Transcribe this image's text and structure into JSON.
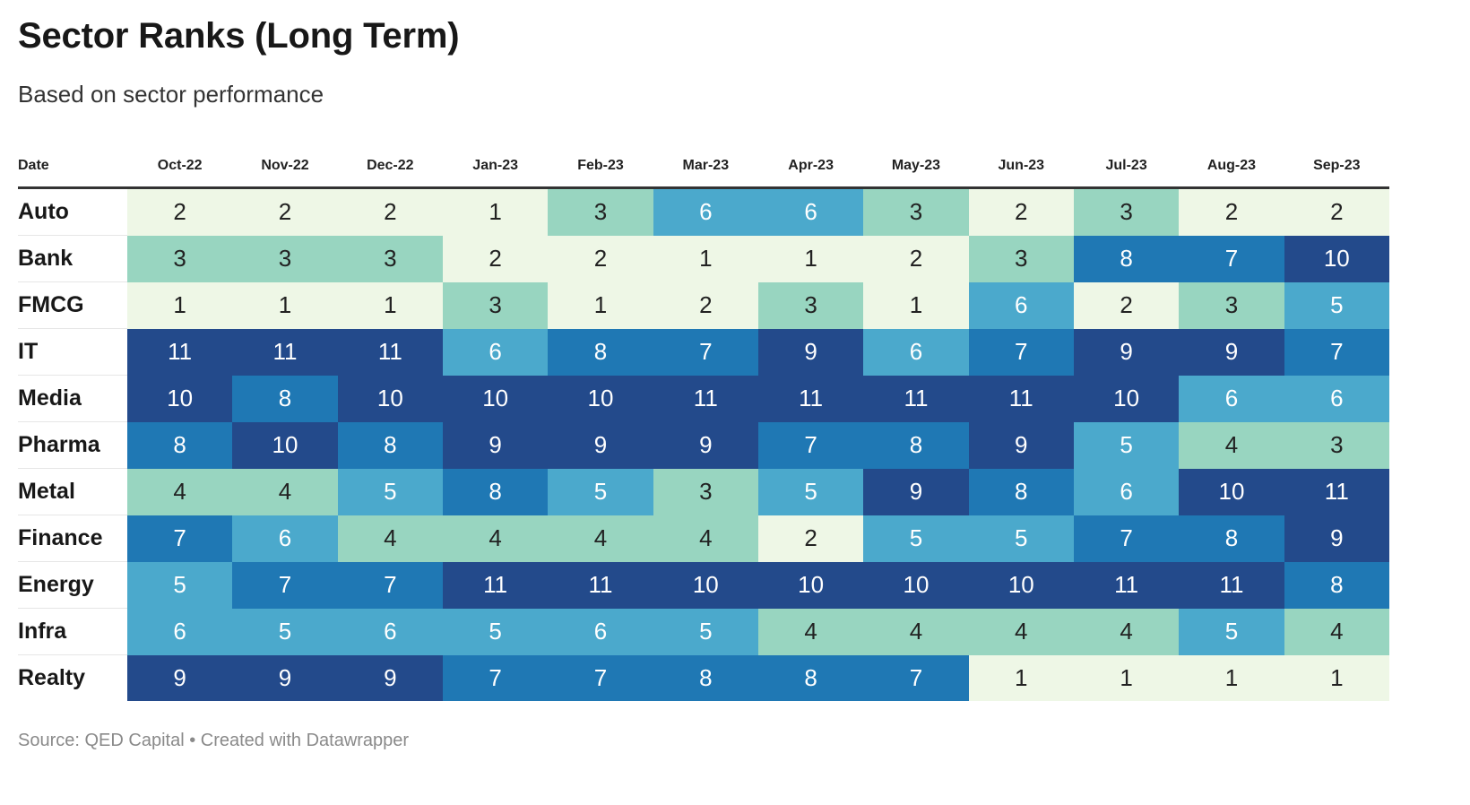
{
  "title": "Sector Ranks (Long Term)",
  "subtitle": "Based on sector performance",
  "footer": "Source: QED Capital • Created with Datawrapper",
  "colors": {
    "rank_1_2": "#eef7e6",
    "rank_3_4": "#98d5c0",
    "rank_5_6": "#4ba9cc",
    "rank_7_8": "#1f78b4",
    "rank_9_11": "#234a8b"
  },
  "chart_data": {
    "type": "heatmap",
    "title": "Sector Ranks (Long Term)",
    "subtitle": "Based on sector performance",
    "row_header": "Date",
    "columns": [
      "Oct-22",
      "Nov-22",
      "Dec-22",
      "Jan-23",
      "Feb-23",
      "Mar-23",
      "Apr-23",
      "May-23",
      "Jun-23",
      "Jul-23",
      "Aug-23",
      "Sep-23"
    ],
    "rows": [
      {
        "name": "Auto",
        "values": [
          2,
          2,
          2,
          1,
          3,
          6,
          6,
          3,
          2,
          3,
          2,
          2
        ]
      },
      {
        "name": "Bank",
        "values": [
          3,
          3,
          3,
          2,
          2,
          1,
          1,
          2,
          3,
          8,
          7,
          10
        ]
      },
      {
        "name": "FMCG",
        "values": [
          1,
          1,
          1,
          3,
          1,
          2,
          3,
          1,
          6,
          2,
          3,
          5
        ]
      },
      {
        "name": "IT",
        "values": [
          11,
          11,
          11,
          6,
          8,
          7,
          9,
          6,
          7,
          9,
          9,
          7
        ]
      },
      {
        "name": "Media",
        "values": [
          10,
          8,
          10,
          10,
          10,
          11,
          11,
          11,
          11,
          10,
          6,
          6
        ]
      },
      {
        "name": "Pharma",
        "values": [
          8,
          10,
          8,
          9,
          9,
          9,
          7,
          8,
          9,
          5,
          4,
          3
        ]
      },
      {
        "name": "Metal",
        "values": [
          4,
          4,
          5,
          8,
          5,
          3,
          5,
          9,
          8,
          6,
          10,
          11
        ]
      },
      {
        "name": "Finance",
        "values": [
          7,
          6,
          4,
          4,
          4,
          4,
          2,
          5,
          5,
          7,
          8,
          9
        ]
      },
      {
        "name": "Energy",
        "values": [
          5,
          7,
          7,
          11,
          11,
          10,
          10,
          10,
          10,
          11,
          11,
          8
        ]
      },
      {
        "name": "Infra",
        "values": [
          6,
          5,
          6,
          5,
          6,
          5,
          4,
          4,
          4,
          4,
          5,
          4
        ]
      },
      {
        "name": "Realty",
        "values": [
          9,
          9,
          9,
          7,
          7,
          8,
          8,
          7,
          1,
          1,
          1,
          1
        ]
      }
    ],
    "source": "Source: QED Capital • Created with Datawrapper"
  }
}
